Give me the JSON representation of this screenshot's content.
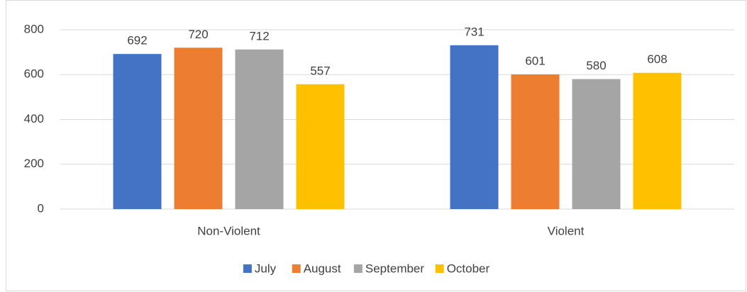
{
  "chart_data": {
    "type": "bar",
    "categories": [
      "Non-Violent",
      "Violent"
    ],
    "series": [
      {
        "name": "July",
        "color": "#4472c4",
        "values": [
          692,
          731
        ]
      },
      {
        "name": "August",
        "color": "#ed7d31",
        "values": [
          720,
          601
        ]
      },
      {
        "name": "September",
        "color": "#a5a5a5",
        "values": [
          712,
          580
        ]
      },
      {
        "name": "October",
        "color": "#ffc000",
        "values": [
          557,
          608
        ]
      }
    ],
    "ylim": [
      0,
      800
    ],
    "yticks": [
      0,
      200,
      400,
      600,
      800
    ],
    "grid": true,
    "legend": "bottom"
  }
}
